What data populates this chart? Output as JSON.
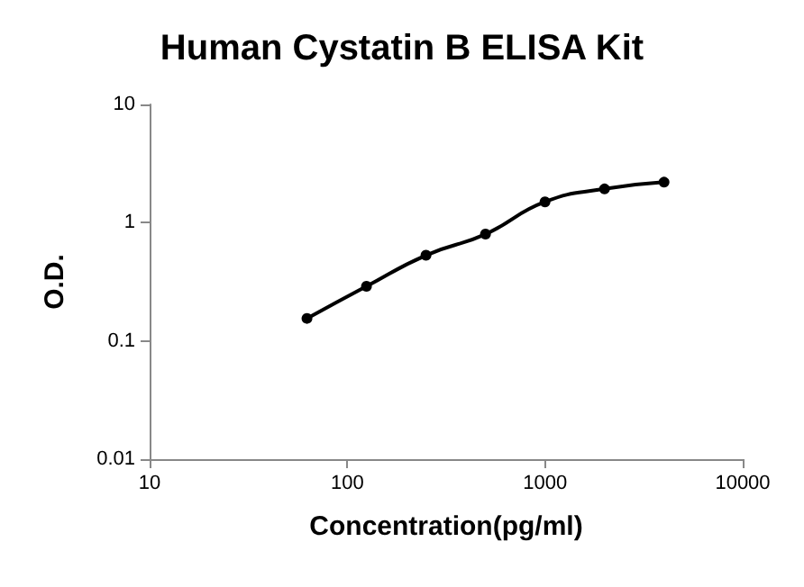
{
  "chart_data": {
    "type": "line",
    "title": "Human Cystatin B ELISA Kit",
    "xlabel": "Concentration(pg/ml)",
    "ylabel": "O.D.",
    "x": [
      62.5,
      125,
      250,
      500,
      1000,
      2000,
      4000
    ],
    "series": [
      {
        "color": "#000000",
        "values": [
          0.155,
          0.29,
          0.53,
          0.8,
          1.5,
          1.93,
          2.2
        ]
      }
    ],
    "xlim": [
      10,
      10000
    ],
    "ylim": [
      0.01,
      10
    ],
    "xticks": [
      10,
      100,
      1000,
      10000
    ],
    "yticks": [
      0.01,
      0.1,
      1,
      10
    ],
    "log": "xy",
    "grid": false,
    "marker": "circle",
    "line_style": "solid"
  }
}
